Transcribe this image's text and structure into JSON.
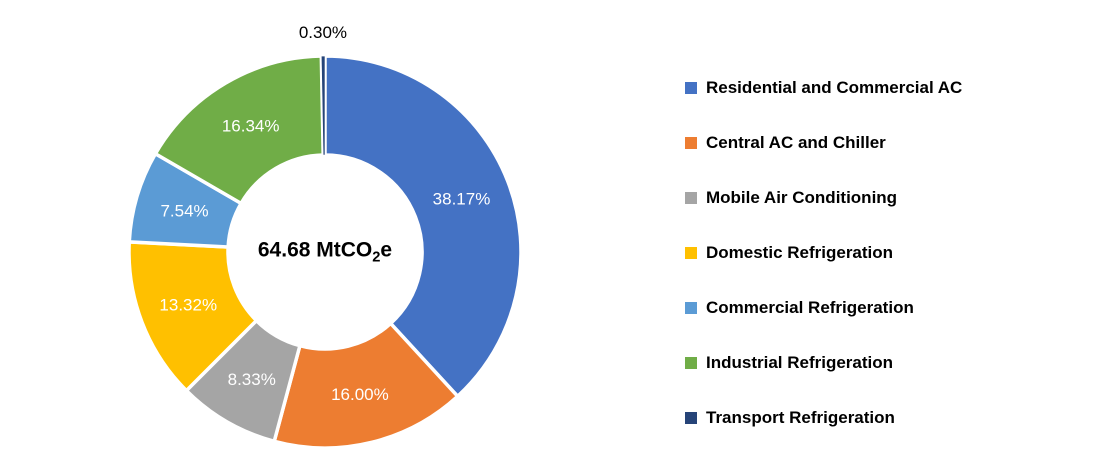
{
  "chart_data": {
    "type": "pie",
    "subtype": "donut",
    "title": "",
    "legend_position": "right",
    "direction": "clockwise",
    "start_angle_deg": 0,
    "center_label": {
      "prefix": "64.68 MtCO",
      "subscript": "2",
      "suffix": "e"
    },
    "categories": [
      "Residential and Commercial AC",
      "Central AC and Chiller",
      "Mobile Air Conditioning",
      "Domestic Refrigeration",
      "Commercial Refrigeration",
      "Industrial Refrigeration",
      "Transport Refrigeration"
    ],
    "values": [
      38.17,
      16.0,
      8.33,
      13.32,
      7.54,
      16.34,
      0.3
    ],
    "labels": [
      "38.17%",
      "16.00%",
      "8.33%",
      "13.32%",
      "7.54%",
      "16.34%",
      "0.30%"
    ],
    "colors": [
      "#4472C4",
      "#ED7D31",
      "#A5A5A5",
      "#FFC000",
      "#5B9BD5",
      "#70AD47",
      "#264478"
    ],
    "label_color_inside": "#FFFFFF",
    "label_color_outside": "#000000"
  }
}
